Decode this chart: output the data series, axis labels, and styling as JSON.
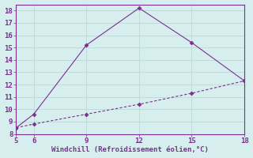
{
  "line1_x": [
    5,
    6,
    9,
    12,
    15,
    18
  ],
  "line1_y": [
    8.5,
    9.6,
    15.2,
    18.2,
    15.4,
    12.3
  ],
  "line2_x": [
    5,
    6,
    9,
    12,
    15,
    18
  ],
  "line2_y": [
    8.5,
    8.8,
    9.6,
    10.4,
    11.3,
    12.3
  ],
  "line_color": "#7b2f8e",
  "marker": "D",
  "marker_size": 2.5,
  "xlim": [
    5,
    18
  ],
  "ylim": [
    8,
    18.5
  ],
  "xticks": [
    5,
    6,
    9,
    12,
    15,
    18
  ],
  "yticks": [
    8,
    9,
    10,
    11,
    12,
    13,
    14,
    15,
    16,
    17,
    18
  ],
  "xlabel": "Windchill (Refroidissement éolien,°C)",
  "background_color": "#d6eeee",
  "grid_color": "#b8d4d4",
  "label_color": "#7b2f8e",
  "tick_color": "#7b2f8e",
  "tick_fontsize": 6.5,
  "xlabel_fontsize": 6.5
}
